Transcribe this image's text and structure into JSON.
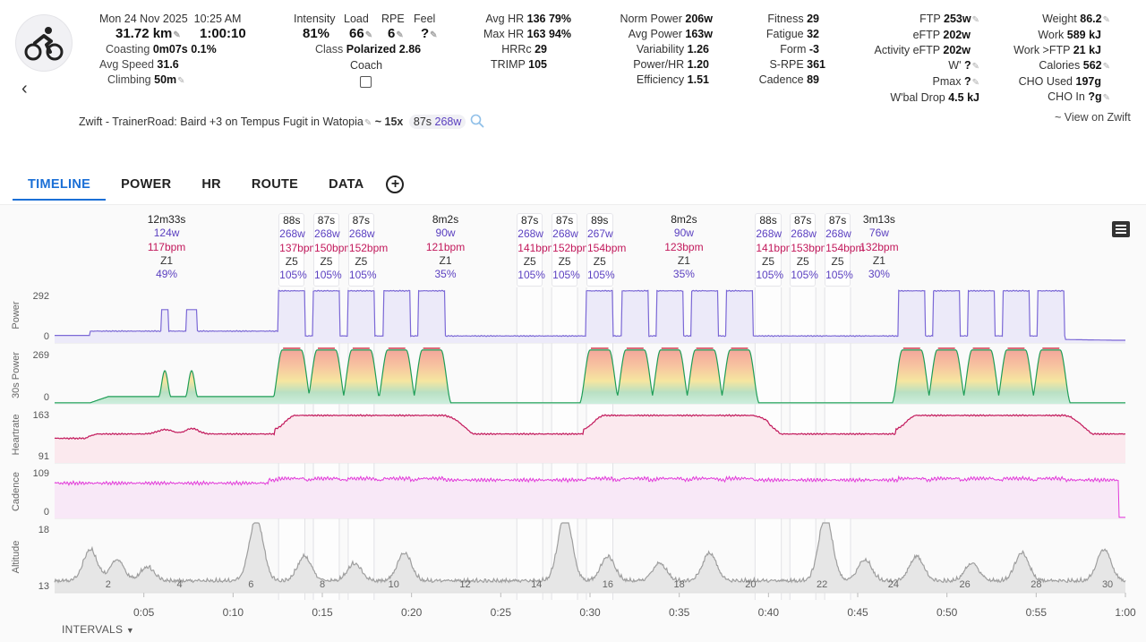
{
  "header": {
    "date": "Mon 24 Nov 2025",
    "time": "10:25 AM",
    "distance": "31.72 km",
    "duration": "1:00:10",
    "coasting_label": "Coasting",
    "coasting_value": "0m07s",
    "coasting_pct": "0.1%",
    "avg_speed_label": "Avg Speed",
    "avg_speed_value": "31.6",
    "climbing_label": "Climbing",
    "climbing_value": "50m",
    "intensity_label": "Intensity",
    "intensity_value": "81%",
    "load_label": "Load",
    "load_value": "66",
    "rpe_label": "RPE",
    "rpe_value": "6",
    "feel_label": "Feel",
    "feel_value": "?",
    "class_label": "Class",
    "class_value": "Polarized 2.86",
    "coach_label": "Coach"
  },
  "stats1": [
    {
      "label": "Avg HR",
      "value": "136 79%"
    },
    {
      "label": "Max HR",
      "value": "163 94%"
    },
    {
      "label": "HRRc",
      "value": "29"
    },
    {
      "label": "TRIMP",
      "value": "105"
    }
  ],
  "stats2": [
    {
      "label": "Norm Power",
      "value": "206w"
    },
    {
      "label": "Avg Power",
      "value": "163w"
    },
    {
      "label": "Variability",
      "value": "1.26"
    },
    {
      "label": "Power/HR",
      "value": "1.20"
    },
    {
      "label": "Efficiency",
      "value": "1.51"
    }
  ],
  "stats3": [
    {
      "label": "Fitness",
      "value": "29"
    },
    {
      "label": "Fatigue",
      "value": "32"
    },
    {
      "label": "Form",
      "value": "-3"
    },
    {
      "label": "S-RPE",
      "value": "361"
    },
    {
      "label": "Cadence",
      "value": "89"
    }
  ],
  "stats4": [
    {
      "label": "FTP",
      "value": "253w"
    },
    {
      "label": "eFTP",
      "value": "202w"
    },
    {
      "label": "Activity eFTP",
      "value": "202w"
    },
    {
      "label": "W'",
      "value": "?"
    },
    {
      "label": "Pmax",
      "value": "?"
    },
    {
      "label": "W'bal Drop",
      "value": "4.5 kJ"
    }
  ],
  "stats5": [
    {
      "label": "Weight",
      "value": "86.2"
    },
    {
      "label": "Work",
      "value": "589 kJ"
    },
    {
      "label": "Work >FTP",
      "value": "21 kJ"
    },
    {
      "label": "Calories",
      "value": "562"
    },
    {
      "label": "CHO Used",
      "value": "197g"
    },
    {
      "label": "CHO In",
      "value": "?g"
    }
  ],
  "description": {
    "name": "Zwift - TrainerRoad: Baird +3 on Tempus Fugit in Watopia",
    "tilde": "~",
    "reps": "15x",
    "rep_dur": "87s",
    "rep_power": "268w"
  },
  "view_on_zwift": "~ View on Zwift",
  "tabs": [
    {
      "label": "TIMELINE"
    },
    {
      "label": "POWER"
    },
    {
      "label": "HR"
    },
    {
      "label": "ROUTE"
    },
    {
      "label": "DATA"
    }
  ],
  "intervals_label": "INTERVALS",
  "intervals": [
    {
      "d": "12m33s",
      "p": "124w",
      "h": "117bpm",
      "z": "Z1",
      "pc": "49%",
      "t0": 0,
      "t1": 12.55,
      "hi": false
    },
    {
      "d": "88s",
      "p": "268w",
      "h": "137bpm",
      "z": "Z5",
      "pc": "105%",
      "t0": 12.55,
      "t1": 14.02,
      "hi": true
    },
    {
      "d": "87s",
      "p": "268w",
      "h": "150bpm",
      "z": "Z5",
      "pc": "105%",
      "t0": 14.5,
      "t1": 15.95,
      "hi": true
    },
    {
      "d": "87s",
      "p": "268w",
      "h": "152bpm",
      "z": "Z5",
      "pc": "105%",
      "t0": 16.45,
      "t1": 17.9,
      "hi": true
    },
    {
      "d": "8m2s",
      "p": "90w",
      "h": "121bpm",
      "z": "Z1",
      "pc": "35%",
      "t0": 17.9,
      "t1": 25.9,
      "hi": false
    },
    {
      "d": "87s",
      "p": "268w",
      "h": "141bpm",
      "z": "Z5",
      "pc": "105%",
      "t0": 25.9,
      "t1": 27.35,
      "hi": true
    },
    {
      "d": "87s",
      "p": "268w",
      "h": "152bpm",
      "z": "Z5",
      "pc": "105%",
      "t0": 27.85,
      "t1": 29.3,
      "hi": true
    },
    {
      "d": "89s",
      "p": "267w",
      "h": "154bpm",
      "z": "Z5",
      "pc": "105%",
      "t0": 29.8,
      "t1": 31.28,
      "hi": true
    },
    {
      "d": "8m2s",
      "p": "90w",
      "h": "123bpm",
      "z": "Z1",
      "pc": "35%",
      "t0": 31.28,
      "t1": 39.25,
      "hi": false
    },
    {
      "d": "88s",
      "p": "268w",
      "h": "141bpm",
      "z": "Z5",
      "pc": "105%",
      "t0": 39.25,
      "t1": 40.72,
      "hi": true
    },
    {
      "d": "87s",
      "p": "268w",
      "h": "153bpm",
      "z": "Z5",
      "pc": "105%",
      "t0": 41.2,
      "t1": 42.65,
      "hi": true
    },
    {
      "d": "87s",
      "p": "268w",
      "h": "154bpm",
      "z": "Z5",
      "pc": "105%",
      "t0": 43.15,
      "t1": 44.6,
      "hi": true
    },
    {
      "d": "3m13s",
      "p": "76w",
      "h": "132bpm",
      "z": "Z1",
      "pc": "30%",
      "t0": 44.6,
      "t1": 47.8,
      "hi": false
    }
  ],
  "chart_data": {
    "type": "line",
    "x_unit": "minutes",
    "xlim": [
      0,
      60
    ],
    "x_ticks": [
      "0:05",
      "0:10",
      "0:15",
      "0:20",
      "0:25",
      "0:30",
      "0:35",
      "0:40",
      "0:45",
      "0:50",
      "0:55",
      "1:00"
    ],
    "interval_numbers": [
      "2",
      "4",
      "6",
      "8",
      "10",
      "12",
      "14",
      "16",
      "18",
      "20",
      "22",
      "24",
      "26",
      "28",
      "30"
    ],
    "reps": [
      [
        12.55,
        14.02
      ],
      [
        14.5,
        15.95
      ],
      [
        16.45,
        17.9
      ],
      [
        18.45,
        19.9
      ],
      [
        20.4,
        21.85
      ],
      [
        29.8,
        31.28
      ],
      [
        31.8,
        33.25
      ],
      [
        33.75,
        35.2
      ],
      [
        35.7,
        37.15
      ],
      [
        37.65,
        39.1
      ],
      [
        47.3,
        48.75
      ],
      [
        49.25,
        50.7
      ],
      [
        51.2,
        52.65
      ],
      [
        53.15,
        54.6
      ],
      [
        55.1,
        56.55
      ]
    ],
    "warmup_blips": [
      [
        6,
        6.35
      ],
      [
        7.4,
        7.95
      ]
    ],
    "panels": [
      {
        "name": "Power",
        "ymax": "292",
        "ymin": "0",
        "color": "#7b68d6",
        "fill": "#eceaf9"
      },
      {
        "name": "30s Power",
        "ymax": "269",
        "ymin": "0",
        "color": "#1f9e57",
        "fill": "#dff2e6"
      },
      {
        "name": "Heartrate",
        "ymax": "163",
        "ymin": "91",
        "color": "#c2185b",
        "fill": "#fbe9ee"
      },
      {
        "name": "Cadence",
        "ymax": "109",
        "ymin": "0",
        "color": "#e23ad9",
        "fill": "#f8e8f7"
      },
      {
        "name": "Altitude",
        "ymax": "18",
        "ymin": "13",
        "color": "#9e9e9e",
        "fill": "#e6e6e6"
      }
    ]
  }
}
